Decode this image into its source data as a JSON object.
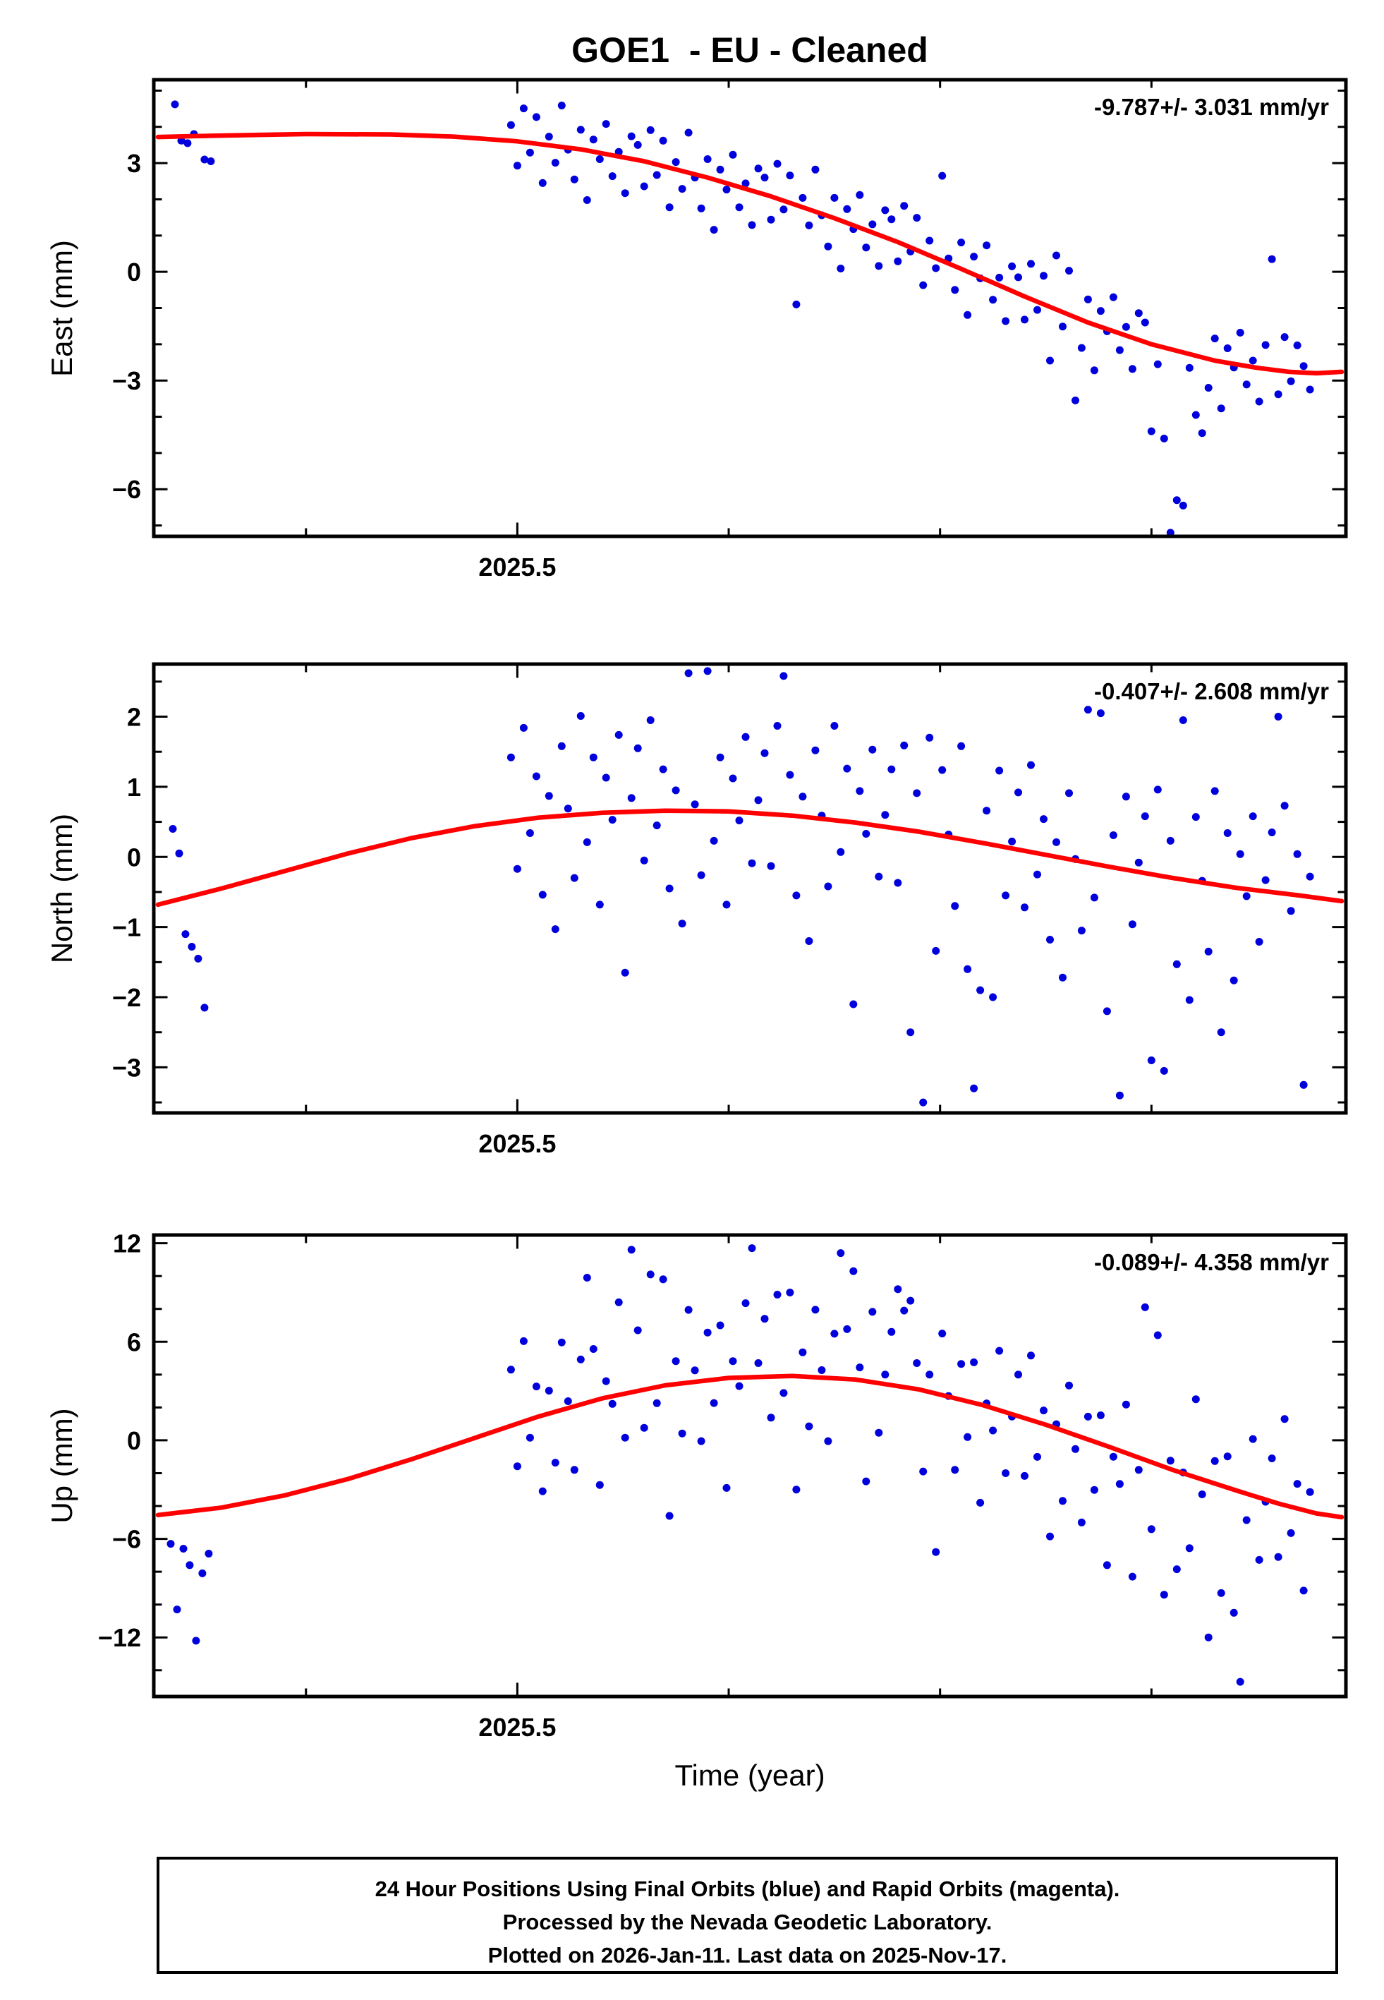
{
  "page": {
    "title": "GOE1  - EU - Cleaned",
    "xlabel": "Time (year)"
  },
  "colors": {
    "points": "#0000dd",
    "trend": "#ff0000",
    "frame": "#000000",
    "background": "#ffffff"
  },
  "footer": {
    "lines": [
      "24 Hour Positions Using Final Orbits (blue) and Rapid Orbits (magenta).",
      "Processed by the Nevada Geodetic Laboratory.",
      "Plotted on 2026-Jan-11. Last data on 2025-Nov-17."
    ]
  },
  "chart_data": [
    {
      "type": "scatter",
      "name": "east",
      "ylabel": "East (mm)",
      "annotation": "-9.787+/- 3.031 mm/yr",
      "xlim": [
        2025.328,
        2025.892
      ],
      "ylim": [
        -7.3,
        5.3
      ],
      "xtick_values": [
        2025.5
      ],
      "xtick_labels": [
        "2025.5"
      ],
      "xtick_minor": 0.1,
      "ytick_values": [
        3,
        0,
        -3,
        -6
      ],
      "ytick_labels": [
        "3",
        "0",
        "−3",
        "−6"
      ],
      "ytick_minor": 1,
      "scatter_segments": [
        {
          "points": [
            [
              2025.338,
              4.62
            ],
            [
              2025.341,
              3.62
            ],
            [
              2025.344,
              3.55
            ],
            [
              2025.347,
              3.8
            ],
            [
              2025.352,
              3.1
            ],
            [
              2025.355,
              3.05
            ]
          ]
        },
        {
          "x0": 2025.497,
          "dx": 0.003,
          "y": [
            4.05,
            2.93,
            4.51,
            3.29,
            4.27,
            2.45,
            3.73,
            3.01,
            4.59,
            3.37,
            2.55,
            3.92,
            1.98,
            3.65,
            3.11,
            4.08,
            2.64,
            3.31,
            2.17,
            3.74,
            3.5,
            2.36,
            3.91,
            2.67,
            3.62,
            1.78,
            3.03,
            2.29,
            3.84,
            2.6,
            1.75,
            3.11,
            1.16,
            2.82,
            2.27,
            3.23,
            1.78,
            2.44,
            1.29,
            2.85,
            2.6,
            1.44,
            2.98,
            1.72,
            2.66,
            -0.9,
            2.04,
            1.28,
            2.82,
            1.56,
            0.7,
            2.04,
            0.09,
            1.73,
            1.18,
            2.12,
            0.67,
            1.31,
            0.16,
            1.7,
            1.45,
            0.29,
            1.82,
            0.56,
            1.49,
            -0.37,
            0.86,
            0.1,
            2.65,
            0.37,
            -0.5,
            0.81,
            -1.19,
            0.42,
            -0.18,
            0.73,
            -0.77,
            -0.16,
            -1.36,
            0.15,
            -0.15,
            -1.32,
            0.22,
            -1.05,
            -0.11,
            -2.45,
            0.45,
            -1.51,
            0.03,
            -3.55,
            -2.1,
            -0.76,
            -2.72,
            -1.08,
            -1.64,
            -0.7,
            -2.16,
            -1.52,
            -2.68,
            -1.14,
            -1.4,
            -4.4,
            -2.55,
            -4.6,
            -7.2,
            -6.3,
            -6.45,
            -2.65,
            -3.95,
            -4.45,
            -3.2,
            -1.84,
            -3.77,
            -2.11,
            -2.64,
            -1.68,
            -3.11,
            -2.45,
            -3.58,
            -2.02,
            0.35,
            -3.38,
            -1.8,
            -3.02,
            -2.03,
            -2.6,
            -3.25
          ]
        }
      ],
      "trend": [
        [
          2025.33,
          3.72
        ],
        [
          2025.36,
          3.76
        ],
        [
          2025.4,
          3.8
        ],
        [
          2025.44,
          3.79
        ],
        [
          2025.47,
          3.73
        ],
        [
          2025.5,
          3.6
        ],
        [
          2025.53,
          3.38
        ],
        [
          2025.56,
          3.05
        ],
        [
          2025.59,
          2.6
        ],
        [
          2025.62,
          2.08
        ],
        [
          2025.65,
          1.48
        ],
        [
          2025.68,
          0.82
        ],
        [
          2025.71,
          0.08
        ],
        [
          2025.74,
          -0.68
        ],
        [
          2025.77,
          -1.4
        ],
        [
          2025.8,
          -2.0
        ],
        [
          2025.83,
          -2.45
        ],
        [
          2025.85,
          -2.65
        ],
        [
          2025.865,
          -2.76
        ],
        [
          2025.878,
          -2.8
        ],
        [
          2025.89,
          -2.76
        ]
      ]
    },
    {
      "type": "scatter",
      "name": "north",
      "ylabel": "North (mm)",
      "annotation": "-0.407+/- 2.608 mm/yr",
      "xlim": [
        2025.328,
        2025.892
      ],
      "ylim": [
        -3.65,
        2.75
      ],
      "xtick_values": [
        2025.5
      ],
      "xtick_labels": [
        "2025.5"
      ],
      "xtick_minor": 0.1,
      "ytick_values": [
        2,
        1,
        0,
        -1,
        -2,
        -3
      ],
      "ytick_labels": [
        "2",
        "1",
        "0",
        "−1",
        "−2",
        "−3"
      ],
      "ytick_minor": 0.5,
      "scatter_segments": [
        {
          "points": [
            [
              2025.337,
              0.4
            ],
            [
              2025.34,
              0.05
            ],
            [
              2025.343,
              -1.1
            ],
            [
              2025.346,
              -1.28
            ],
            [
              2025.349,
              -1.45
            ],
            [
              2025.352,
              -2.15
            ]
          ]
        },
        {
          "x0": 2025.497,
          "dx": 0.003,
          "y": [
            1.42,
            -0.17,
            1.84,
            0.34,
            1.15,
            -0.54,
            0.87,
            -1.03,
            1.58,
            0.69,
            -0.3,
            2.01,
            0.21,
            1.42,
            -0.68,
            1.13,
            0.53,
            1.74,
            -1.65,
            0.84,
            1.55,
            -0.05,
            1.95,
            0.45,
            1.25,
            -0.45,
            0.95,
            -0.95,
            2.62,
            0.75,
            -0.26,
            2.65,
            0.23,
            1.42,
            -0.68,
            1.12,
            0.52,
            1.71,
            -0.09,
            0.81,
            1.48,
            -0.13,
            1.87,
            2.58,
            1.17,
            -0.55,
            0.86,
            -1.2,
            1.52,
            0.59,
            -0.42,
            1.87,
            0.07,
            1.26,
            -2.1,
            0.94,
            0.33,
            1.53,
            -0.28,
            0.6,
            1.25,
            -0.37,
            1.59,
            -2.5,
            0.91,
            -3.5,
            1.7,
            -1.34,
            1.24,
            0.32,
            -0.7,
            1.58,
            -1.6,
            -3.3,
            -1.9,
            0.66,
            -2.0,
            1.23,
            -0.55,
            0.22,
            0.92,
            -0.72,
            1.31,
            -0.25,
            0.54,
            -1.18,
            0.21,
            -1.72,
            0.91,
            -0.03,
            -1.05,
            2.1,
            -0.58,
            2.05,
            -2.2,
            0.31,
            -3.4,
            0.86,
            -0.96,
            -0.08,
            0.58,
            -2.9,
            0.96,
            -3.05,
            0.23,
            -1.53,
            1.95,
            -2.04,
            0.57,
            -0.34,
            -1.35,
            0.94,
            -2.5,
            0.34,
            -1.76,
            0.04,
            -0.56,
            0.58,
            -1.21,
            -0.33,
            0.35,
            2.0,
            0.73,
            -0.77,
            0.04,
            -3.25,
            -0.28
          ]
        }
      ],
      "trend": [
        [
          2025.33,
          -0.68
        ],
        [
          2025.36,
          -0.45
        ],
        [
          2025.39,
          -0.2
        ],
        [
          2025.42,
          0.05
        ],
        [
          2025.45,
          0.27
        ],
        [
          2025.48,
          0.44
        ],
        [
          2025.51,
          0.56
        ],
        [
          2025.54,
          0.63
        ],
        [
          2025.57,
          0.66
        ],
        [
          2025.6,
          0.65
        ],
        [
          2025.63,
          0.59
        ],
        [
          2025.66,
          0.49
        ],
        [
          2025.69,
          0.36
        ],
        [
          2025.72,
          0.2
        ],
        [
          2025.75,
          0.03
        ],
        [
          2025.78,
          -0.14
        ],
        [
          2025.81,
          -0.3
        ],
        [
          2025.84,
          -0.44
        ],
        [
          2025.87,
          -0.55
        ],
        [
          2025.89,
          -0.63
        ]
      ]
    },
    {
      "type": "scatter",
      "name": "up",
      "ylabel": "Up (mm)",
      "annotation": "-0.089+/- 4.358 mm/yr",
      "xlim": [
        2025.328,
        2025.892
      ],
      "ylim": [
        -15.6,
        12.5
      ],
      "xtick_values": [
        2025.5
      ],
      "xtick_labels": [
        "2025.5"
      ],
      "xtick_minor": 0.1,
      "ytick_values": [
        12,
        6,
        0,
        -6,
        -12
      ],
      "ytick_labels": [
        "12",
        "6",
        "0",
        "−6",
        "−12"
      ],
      "ytick_minor": 2,
      "scatter_segments": [
        {
          "points": [
            [
              2025.336,
              -6.3
            ],
            [
              2025.339,
              -10.3
            ],
            [
              2025.342,
              -6.6
            ],
            [
              2025.345,
              -7.6
            ],
            [
              2025.348,
              -12.2
            ],
            [
              2025.351,
              -8.1
            ],
            [
              2025.354,
              -6.9
            ]
          ]
        },
        {
          "x0": 2025.497,
          "dx": 0.003,
          "y": [
            4.3,
            -1.58,
            6.04,
            0.16,
            3.28,
            -3.1,
            3.02,
            -1.36,
            5.96,
            2.38,
            -1.8,
            4.92,
            9.9,
            5.56,
            -2.72,
            3.6,
            2.22,
            8.4,
            0.16,
            11.6,
            6.7,
            0.76,
            10.1,
            2.26,
            9.8,
            -4.6,
            4.82,
            0.42,
            7.94,
            4.26,
            -0.05,
            6.56,
            2.27,
            7.0,
            -2.9,
            4.82,
            3.3,
            8.35,
            11.7,
            4.7,
            7.4,
            1.38,
            8.87,
            2.88,
            9.0,
            -3.0,
            5.36,
            0.85,
            7.95,
            4.27,
            -0.05,
            6.49,
            11.4,
            6.77,
            10.3,
            4.44,
            -2.5,
            7.82,
            0.46,
            4.0,
            6.6,
            9.2,
            7.9,
            8.5,
            4.7,
            -1.9,
            4.0,
            -6.8,
            6.5,
            2.7,
            -1.8,
            4.65,
            0.2,
            4.75,
            -3.8,
            2.25,
            0.6,
            5.45,
            -2.0,
            1.45,
            4.0,
            -2.17,
            5.16,
            -1.01,
            1.82,
            -5.85,
            0.98,
            -3.69,
            3.34,
            -0.53,
            -5.0,
            1.44,
            -3.02,
            1.52,
            -7.6,
            -1.0,
            -2.66,
            2.18,
            -8.3,
            -1.8,
            8.1,
            -5.41,
            6.4,
            -9.4,
            -1.24,
            -7.85,
            -1.96,
            -6.57,
            2.5,
            -3.29,
            -12.0,
            -1.26,
            -9.3,
            -0.98,
            -10.5,
            -14.7,
            -4.86,
            0.08,
            -7.28,
            -3.74,
            -1.1,
            -7.1,
            1.3,
            -5.65,
            -2.65,
            -9.15,
            -3.15
          ]
        }
      ],
      "trend": [
        [
          2025.33,
          -4.55
        ],
        [
          2025.36,
          -4.1
        ],
        [
          2025.39,
          -3.35
        ],
        [
          2025.42,
          -2.35
        ],
        [
          2025.45,
          -1.15
        ],
        [
          2025.48,
          0.15
        ],
        [
          2025.51,
          1.45
        ],
        [
          2025.54,
          2.55
        ],
        [
          2025.57,
          3.35
        ],
        [
          2025.6,
          3.8
        ],
        [
          2025.63,
          3.92
        ],
        [
          2025.66,
          3.7
        ],
        [
          2025.69,
          3.1
        ],
        [
          2025.72,
          2.15
        ],
        [
          2025.75,
          0.95
        ],
        [
          2025.78,
          -0.4
        ],
        [
          2025.81,
          -1.8
        ],
        [
          2025.84,
          -3.05
        ],
        [
          2025.86,
          -3.85
        ],
        [
          2025.878,
          -4.45
        ],
        [
          2025.89,
          -4.68
        ]
      ]
    }
  ]
}
